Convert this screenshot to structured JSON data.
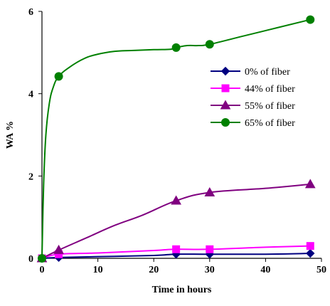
{
  "chart_data": {
    "type": "line",
    "title": "",
    "xlabel": "Time in hours",
    "ylabel": "WA %",
    "xlim": [
      0,
      50
    ],
    "ylim": [
      0,
      6
    ],
    "x_ticks": [
      0,
      10,
      20,
      30,
      40,
      50
    ],
    "y_ticks": [
      0,
      2,
      4,
      6
    ],
    "grid": false,
    "legend_position": "right",
    "series": [
      {
        "name": "0% of fiber",
        "color": "#000080",
        "marker": "diamond",
        "points": [
          [
            0,
            0
          ],
          [
            3,
            0.02
          ],
          [
            24,
            0.1
          ],
          [
            30,
            0.1
          ],
          [
            48,
            0.12
          ]
        ],
        "curve": [
          [
            0,
            0
          ],
          [
            3,
            0.02
          ],
          [
            10,
            0.04
          ],
          [
            20,
            0.07
          ],
          [
            24,
            0.1
          ],
          [
            30,
            0.1
          ],
          [
            40,
            0.1
          ],
          [
            48,
            0.12
          ]
        ]
      },
      {
        "name": "44% of fiber",
        "color": "#ff00ff",
        "marker": "square",
        "points": [
          [
            0,
            0
          ],
          [
            3,
            0.1
          ],
          [
            24,
            0.22
          ],
          [
            30,
            0.22
          ],
          [
            48,
            0.3
          ]
        ],
        "curve": [
          [
            0,
            0
          ],
          [
            3,
            0.1
          ],
          [
            10,
            0.13
          ],
          [
            20,
            0.19
          ],
          [
            24,
            0.22
          ],
          [
            30,
            0.22
          ],
          [
            40,
            0.27
          ],
          [
            48,
            0.3
          ]
        ]
      },
      {
        "name": "55% of fiber",
        "color": "#800080",
        "marker": "triangle",
        "points": [
          [
            0,
            0
          ],
          [
            3,
            0.2
          ],
          [
            24,
            1.4
          ],
          [
            30,
            1.6
          ],
          [
            48,
            1.8
          ]
        ],
        "curve": [
          [
            0,
            0
          ],
          [
            3,
            0.2
          ],
          [
            8,
            0.5
          ],
          [
            13,
            0.8
          ],
          [
            18,
            1.05
          ],
          [
            24,
            1.4
          ],
          [
            30,
            1.6
          ],
          [
            40,
            1.7
          ],
          [
            48,
            1.8
          ]
        ]
      },
      {
        "name": "65% of fiber",
        "color": "#008000",
        "marker": "circle",
        "points": [
          [
            0,
            0
          ],
          [
            3,
            4.42
          ],
          [
            24,
            5.12
          ],
          [
            30,
            5.2
          ],
          [
            48,
            5.8
          ]
        ],
        "curve": [
          [
            0,
            0
          ],
          [
            0.3,
            1.8
          ],
          [
            0.7,
            3.0
          ],
          [
            1.3,
            3.75
          ],
          [
            2,
            4.15
          ],
          [
            3,
            4.42
          ],
          [
            5,
            4.65
          ],
          [
            7.5,
            4.85
          ],
          [
            10,
            4.96
          ],
          [
            13,
            5.03
          ],
          [
            16,
            5.05
          ],
          [
            20,
            5.07
          ],
          [
            23,
            5.08
          ],
          [
            24,
            5.12
          ],
          [
            26,
            5.17
          ],
          [
            28,
            5.17
          ],
          [
            30,
            5.2
          ],
          [
            36,
            5.4
          ],
          [
            42,
            5.6
          ],
          [
            48,
            5.8
          ]
        ]
      }
    ]
  }
}
